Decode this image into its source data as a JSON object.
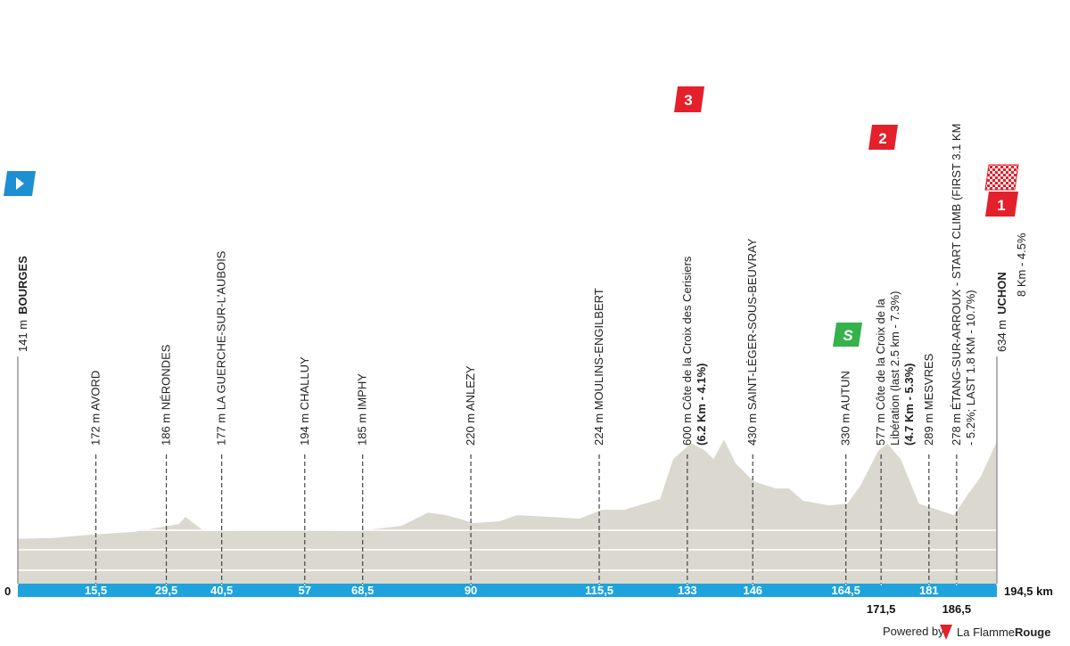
{
  "chart_data": {
    "type": "area",
    "color": "#dbd8cf",
    "bar_color": "#1ea3dc",
    "x": [
      0,
      7,
      14,
      23,
      32,
      33.3,
      37,
      49.6,
      58.5,
      67.3,
      76.2,
      81.5,
      85,
      87.7,
      90.4,
      95.7,
      99.2,
      106,
      111.6,
      116,
      120.5,
      127.6,
      130.2,
      133.8,
      136.4,
      138.2,
      140.3,
      142.6,
      146.2,
      150.6,
      153.2,
      156,
      161.2,
      164.8,
      167.4,
      171,
      172.8,
      175.4,
      179,
      181.6,
      186,
      188.7,
      191.3,
      194.5
    ],
    "values": [
      141,
      145,
      161,
      175,
      215,
      251,
      179,
      184,
      184,
      179,
      206,
      273,
      260,
      242,
      220,
      229,
      260,
      251,
      242,
      287,
      287,
      341,
      542,
      623,
      587,
      542,
      641,
      520,
      430,
      394,
      394,
      332,
      309,
      318,
      408,
      587,
      618,
      542,
      318,
      296,
      260,
      363,
      453,
      632
    ],
    "xlim": [
      0,
      194.5
    ],
    "ylim": [
      -85,
      700
    ],
    "xticks": [
      0,
      {
        "value": 15.5,
        "label": "15,5"
      },
      {
        "value": 29.5,
        "label": "29,5"
      },
      {
        "value": 40.5,
        "label": "40,5"
      },
      57,
      {
        "value": 68.5,
        "label": "68,5"
      },
      90,
      {
        "value": 115.5,
        "label": "115,5"
      },
      133,
      146,
      {
        "value": 164.5,
        "label": "164,5"
      },
      {
        "value": 171.5,
        "label": "171,5"
      },
      181,
      {
        "value": 186.5,
        "label": "186,5"
      },
      {
        "value": 194.5,
        "label": "194,5 km"
      }
    ],
    "start": {
      "altitude": "141 m",
      "name": "BOURGES"
    },
    "finish": {
      "altitude": "634 m",
      "name": "UCHON",
      "detail": "8 Km - 4.5%"
    },
    "waypoints": [
      {
        "lines": [
          "172 m AVORD"
        ]
      },
      {
        "lines": [
          "186 m NÉRONDES"
        ]
      },
      {
        "lines": [
          "177 m LA GUERCHE-SUR-L'AUBOIS"
        ]
      },
      {
        "lines": [
          "194 m CHALLUY"
        ]
      },
      {
        "lines": [
          "185 m IMPHY"
        ]
      },
      {
        "lines": [
          "220 m ANLEZY"
        ]
      },
      {
        "lines": [
          "224 m MOULINS-ENGILBERT"
        ]
      },
      {
        "lines": [
          "600 m Côte de la Croix des Cerisiers"
        ],
        "emphasis": "(6.2 Km - 4.1%)"
      },
      {
        "lines": [
          "430 m SAINT-LÉGER-SOUS-BEUVRAY"
        ]
      },
      {
        "lines": [
          "330 m AUTUN"
        ]
      },
      {
        "lines": [
          "577 m Côte de la Croix de la",
          "Libération (last 2.5 km - 7.3%)"
        ],
        "emphasis": "(4.7 Km - 5.3%)"
      },
      {
        "lines": [
          "289 m MESVRES"
        ]
      },
      {
        "lines": [
          "278 m ÉTANG-SUR-ARROUX - START CLIMB (FIRST 3.1 KM",
          "- 5.2%; LAST 1.8 KM - 10.7%)"
        ]
      }
    ],
    "badges": [
      {
        "label": "3",
        "color": "#e3202b"
      },
      {
        "label": "2",
        "color": "#e3202b"
      },
      {
        "label": "S",
        "color": "#35b24a"
      },
      {
        "label": "1",
        "color": "#e3202b"
      }
    ],
    "footer": {
      "powered": "Powered by",
      "brand": [
        "La Flamme",
        "Rouge"
      ]
    }
  }
}
